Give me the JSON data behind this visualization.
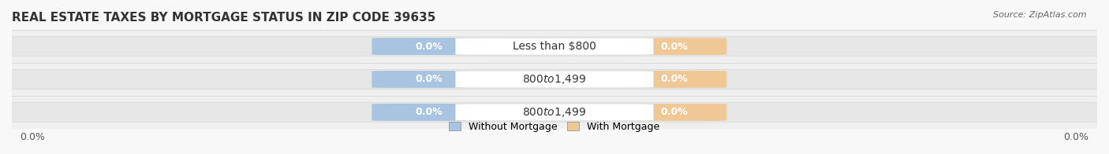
{
  "title": "REAL ESTATE TAXES BY MORTGAGE STATUS IN ZIP CODE 39635",
  "source": "Source: ZipAtlas.com",
  "categories": [
    "Less than $800",
    "$800 to $1,499",
    "$800 to $1,499"
  ],
  "without_mortgage": [
    0.0,
    0.0,
    0.0
  ],
  "with_mortgage": [
    0.0,
    0.0,
    0.0
  ],
  "bar_color_without": "#a8c4e0",
  "bar_color_with": "#f0c896",
  "label_color_without": "#7aaac8",
  "label_color_with": "#e8a870",
  "bg_color": "#f5f5f5",
  "bar_bg_color": "#e8e8e8",
  "legend_without": "Without Mortgage",
  "legend_with": "With Mortgage",
  "xlim_left": 0.0,
  "xlim_right": 0.0,
  "x_tick_left": "0.0%",
  "x_tick_right": "0.0%",
  "title_fontsize": 11,
  "source_fontsize": 8,
  "category_fontsize": 10,
  "value_fontsize": 9
}
